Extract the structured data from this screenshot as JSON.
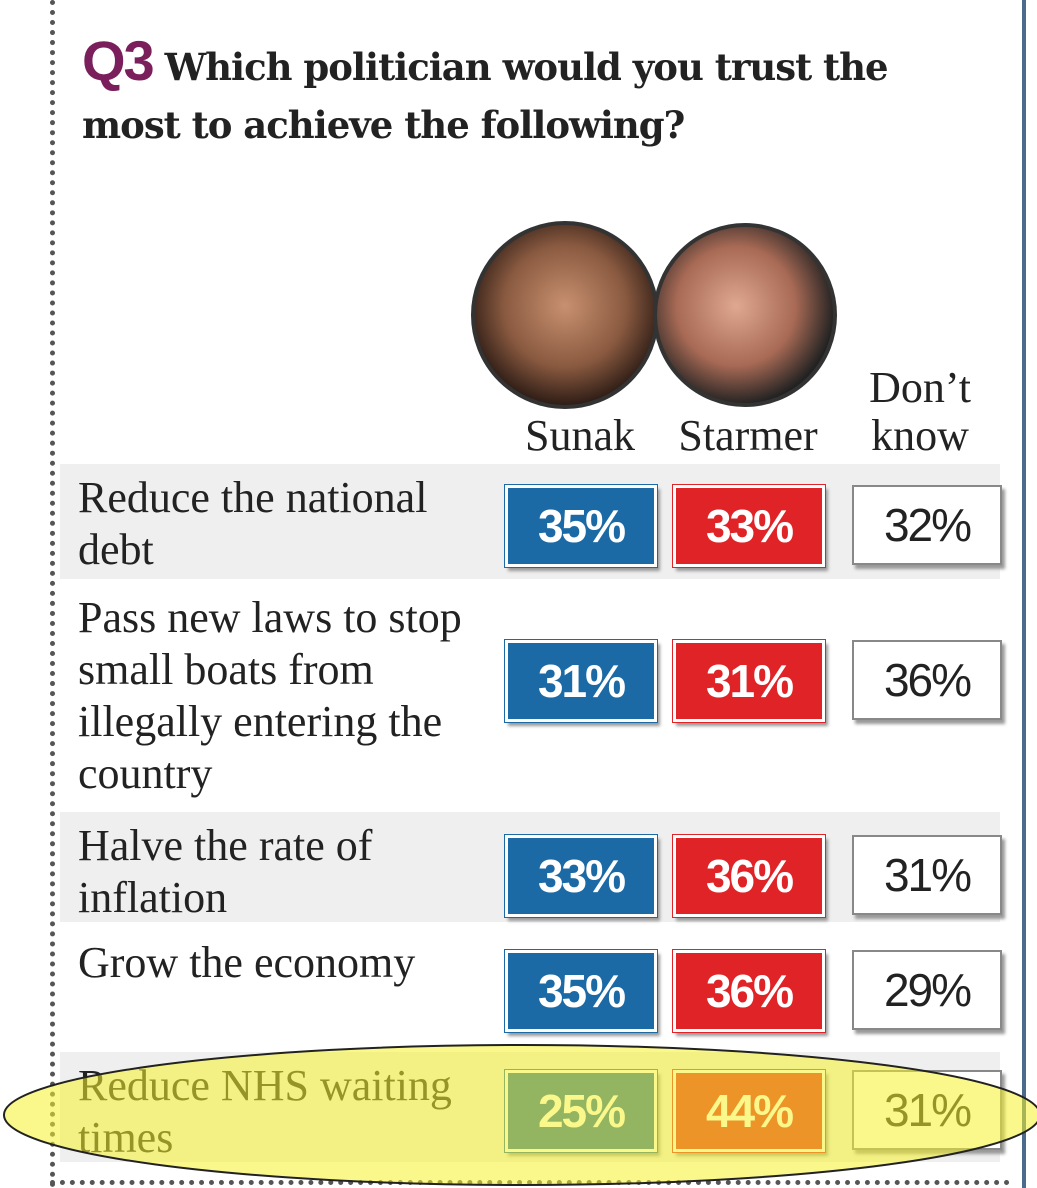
{
  "header": {
    "question_number": "Q3",
    "title": "Which politician would you trust the most to achieve the following?"
  },
  "columns": [
    "Sunak",
    "Starmer",
    "Don’t know"
  ],
  "rows": [
    {
      "label": "Reduce the national debt",
      "values": [
        "35%",
        "33%",
        "32%"
      ]
    },
    {
      "label": "Pass new laws to stop small boats from illegally entering the country",
      "values": [
        "31%",
        "31%",
        "36%"
      ]
    },
    {
      "label": "Halve the rate of inflation",
      "values": [
        "33%",
        "36%",
        "31%"
      ]
    },
    {
      "label": "Grow the economy",
      "values": [
        "35%",
        "36%",
        "29%"
      ]
    },
    {
      "label": "Reduce NHS waiting times",
      "values": [
        "25%",
        "44%",
        "31%"
      ]
    }
  ]
}
